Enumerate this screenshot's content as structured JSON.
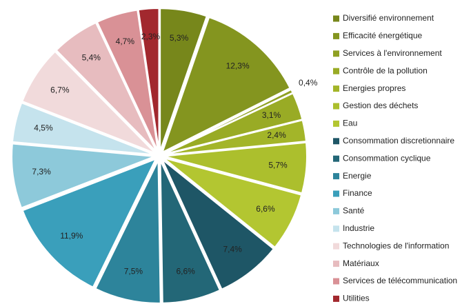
{
  "chart_data": {
    "type": "pie",
    "categories": [
      "Diversifié environnement",
      "Efficacité énergétique",
      "Services à l'environnement",
      "Contrôle de la pollution",
      "Energies propres",
      "Gestion des déchets",
      "Eau",
      "Consommation discretionnaire",
      "Consommation cyclique",
      "Energie",
      "Finance",
      "Santé",
      "Industrie",
      "Technologies de l'information",
      "Matériaux",
      "Services de télécommunication",
      "Utilities"
    ],
    "values": [
      5.3,
      12.3,
      0.4,
      3.1,
      2.4,
      5.7,
      6.6,
      7.4,
      6.6,
      7.5,
      11.9,
      7.3,
      4.5,
      6.7,
      5.4,
      4.7,
      2.3
    ],
    "value_labels": [
      "5,3%",
      "12,3%",
      "0,4%",
      "3,1%",
      "2,4%",
      "5,7%",
      "6,6%",
      "7,4%",
      "6,6%",
      "7,5%",
      "11,9%",
      "7,3%",
      "4,5%",
      "6,7%",
      "5,4%",
      "4,7%",
      "2,3%"
    ],
    "colors": [
      "#77871b",
      "#84951f",
      "#8fa022",
      "#99ab25",
      "#a3b529",
      "#acbf2d",
      "#b3c631",
      "#1e5666",
      "#236777",
      "#2d849b",
      "#3a9fbb",
      "#8dc9da",
      "#c5e3ed",
      "#f1dadb",
      "#e7bcbf",
      "#d99196",
      "#a2282e"
    ],
    "legend": "right"
  }
}
